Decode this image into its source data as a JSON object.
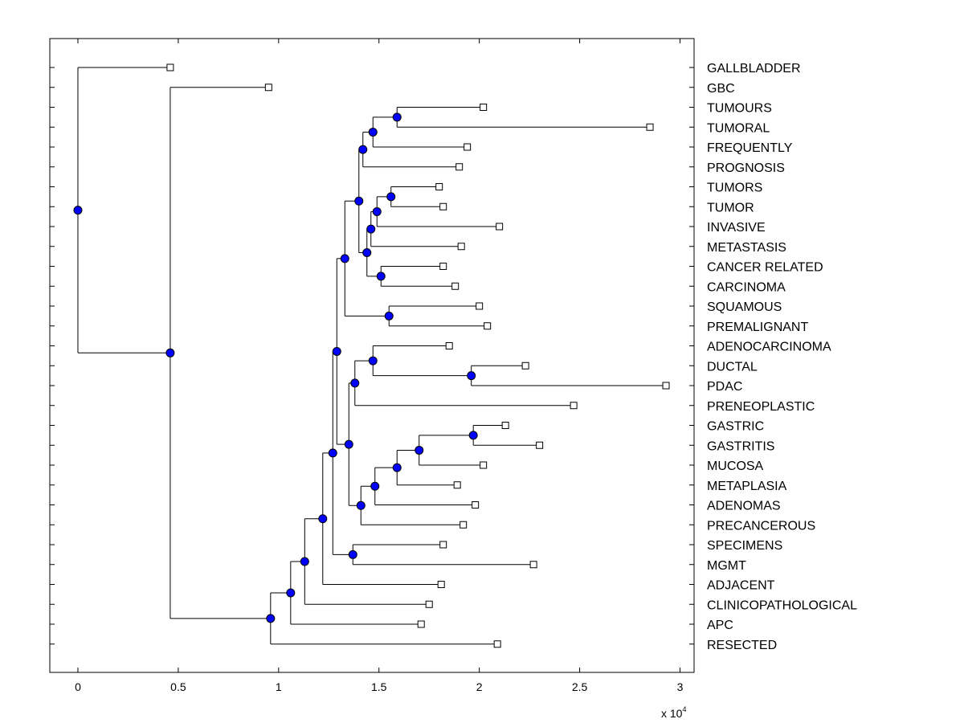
{
  "chart_data": {
    "type": "dendrogram",
    "title": "",
    "xlabel": "",
    "ylabel": "",
    "xlim": [
      -0.14,
      3.07
    ],
    "xticks": [
      0,
      0.5,
      1,
      1.5,
      2,
      2.5,
      3
    ],
    "xtick_labels": [
      "0",
      "0.5",
      "1",
      "1.5",
      "2",
      "2.5",
      "3"
    ],
    "x_multiplier_base": "x 10",
    "x_multiplier_exponent": "4",
    "grid": false,
    "colors": {
      "internal_node": "#0000ff",
      "line": "#000000",
      "leaf_marker": "#ffffff"
    },
    "leaves": [
      {
        "id": "GALLBLADDER",
        "label": "GALLBLADDER",
        "x": 0.46
      },
      {
        "id": "GBC",
        "label": "GBC",
        "x": 0.95
      },
      {
        "id": "TUMOURS",
        "label": "TUMOURS",
        "x": 2.02
      },
      {
        "id": "TUMORAL",
        "label": "TUMORAL",
        "x": 2.85
      },
      {
        "id": "FREQUENTLY",
        "label": "FREQUENTLY",
        "x": 1.94
      },
      {
        "id": "PROGNOSIS",
        "label": "PROGNOSIS",
        "x": 1.9
      },
      {
        "id": "TUMORS",
        "label": "TUMORS",
        "x": 1.8
      },
      {
        "id": "TUMOR",
        "label": "TUMOR",
        "x": 1.82
      },
      {
        "id": "INVASIVE",
        "label": "INVASIVE",
        "x": 2.1
      },
      {
        "id": "METASTASIS",
        "label": "METASTASIS",
        "x": 1.91
      },
      {
        "id": "CANCER_RELATED",
        "label": "CANCER RELATED",
        "x": 1.82
      },
      {
        "id": "CARCINOMA",
        "label": "CARCINOMA",
        "x": 1.88
      },
      {
        "id": "SQUAMOUS",
        "label": "SQUAMOUS",
        "x": 2.0
      },
      {
        "id": "PREMALIGNANT",
        "label": "PREMALIGNANT",
        "x": 2.04
      },
      {
        "id": "ADENOCARCINOMA",
        "label": "ADENOCARCINOMA",
        "x": 1.85
      },
      {
        "id": "DUCTAL",
        "label": "DUCTAL",
        "x": 2.23
      },
      {
        "id": "PDAC",
        "label": "PDAC",
        "x": 2.93
      },
      {
        "id": "PRENEOPLASTIC",
        "label": "PRENEOPLASTIC",
        "x": 2.47
      },
      {
        "id": "GASTRIC",
        "label": "GASTRIC",
        "x": 2.13
      },
      {
        "id": "GASTRITIS",
        "label": "GASTRITIS",
        "x": 2.3
      },
      {
        "id": "MUCOSA",
        "label": "MUCOSA",
        "x": 2.02
      },
      {
        "id": "METAPLASIA",
        "label": "METAPLASIA",
        "x": 1.89
      },
      {
        "id": "ADENOMAS",
        "label": "ADENOMAS",
        "x": 1.98
      },
      {
        "id": "PRECANCEROUS",
        "label": "PRECANCEROUS",
        "x": 1.92
      },
      {
        "id": "SPECIMENS",
        "label": "SPECIMENS",
        "x": 1.82
      },
      {
        "id": "MGMT",
        "label": "MGMT",
        "x": 2.27
      },
      {
        "id": "ADJACENT",
        "label": "ADJACENT",
        "x": 1.81
      },
      {
        "id": "CLINICOPATHOLOGICAL",
        "label": "CLINICOPATHOLOGICAL",
        "x": 1.75
      },
      {
        "id": "APC",
        "label": "APC",
        "x": 1.71
      },
      {
        "id": "RESECTED",
        "label": "RESECTED",
        "x": 2.09
      }
    ],
    "nodes": [
      {
        "id": "n_tumours_tumoral",
        "x": 1.59,
        "children": [
          "TUMOURS",
          "TUMORAL"
        ]
      },
      {
        "id": "n_freq",
        "x": 1.47,
        "children": [
          "n_tumours_tumoral",
          "FREQUENTLY"
        ]
      },
      {
        "id": "n_prog",
        "x": 1.42,
        "children": [
          "n_freq",
          "PROGNOSIS"
        ]
      },
      {
        "id": "n_tumors_tumor",
        "x": 1.56,
        "children": [
          "TUMORS",
          "TUMOR"
        ]
      },
      {
        "id": "n_invasive",
        "x": 1.49,
        "children": [
          "n_tumors_tumor",
          "INVASIVE"
        ]
      },
      {
        "id": "n_metastasis",
        "x": 1.46,
        "children": [
          "n_invasive",
          "METASTASIS"
        ]
      },
      {
        "id": "n_cancer_carcinoma",
        "x": 1.51,
        "children": [
          "CANCER_RELATED",
          "CARCINOMA"
        ]
      },
      {
        "id": "n_tumor_group",
        "x": 1.44,
        "children": [
          "n_metastasis",
          "n_cancer_carcinoma"
        ]
      },
      {
        "id": "n_tumor_cluster",
        "x": 1.4,
        "children": [
          "n_prog",
          "n_tumor_group"
        ]
      },
      {
        "id": "n_squamous_premal",
        "x": 1.55,
        "children": [
          "SQUAMOUS",
          "PREMALIGNANT"
        ]
      },
      {
        "id": "n_upper",
        "x": 1.33,
        "children": [
          "n_tumor_cluster",
          "n_squamous_premal"
        ]
      },
      {
        "id": "n_ductal_pdac",
        "x": 1.96,
        "children": [
          "DUCTAL",
          "PDAC"
        ]
      },
      {
        "id": "n_adeno",
        "x": 1.47,
        "children": [
          "ADENOCARCINOMA",
          "n_ductal_pdac"
        ]
      },
      {
        "id": "n_preneo",
        "x": 1.38,
        "children": [
          "n_adeno",
          "PRENEOPLASTIC"
        ]
      },
      {
        "id": "n_gastric_gastritis",
        "x": 1.97,
        "children": [
          "GASTRIC",
          "GASTRITIS"
        ]
      },
      {
        "id": "n_mucosa",
        "x": 1.7,
        "children": [
          "n_gastric_gastritis",
          "MUCOSA"
        ]
      },
      {
        "id": "n_metaplasia",
        "x": 1.59,
        "children": [
          "n_mucosa",
          "METAPLASIA"
        ]
      },
      {
        "id": "n_adenomas",
        "x": 1.48,
        "children": [
          "n_metaplasia",
          "ADENOMAS"
        ]
      },
      {
        "id": "n_precancerous",
        "x": 1.41,
        "children": [
          "n_adenomas",
          "PRECANCEROUS"
        ]
      },
      {
        "id": "n_middle",
        "x": 1.35,
        "children": [
          "n_preneo",
          "n_precancerous"
        ]
      },
      {
        "id": "n_main",
        "x": 1.29,
        "children": [
          "n_upper",
          "n_middle"
        ]
      },
      {
        "id": "n_specimens_mgmt",
        "x": 1.37,
        "children": [
          "SPECIMENS",
          "MGMT"
        ]
      },
      {
        "id": "n_big",
        "x": 1.27,
        "children": [
          "n_main",
          "n_specimens_mgmt"
        ]
      },
      {
        "id": "n_adjacent",
        "x": 1.22,
        "children": [
          "n_big",
          "ADJACENT"
        ]
      },
      {
        "id": "n_clinico",
        "x": 1.13,
        "children": [
          "n_adjacent",
          "CLINICOPATHOLOGICAL"
        ]
      },
      {
        "id": "n_apc",
        "x": 1.06,
        "children": [
          "n_clinico",
          "APC"
        ]
      },
      {
        "id": "n_resected",
        "x": 0.96,
        "children": [
          "n_apc",
          "RESECTED"
        ]
      },
      {
        "id": "n_gbc",
        "x": 0.46,
        "children": [
          "GBC",
          "n_resected"
        ]
      },
      {
        "id": "n_root",
        "x": 0.0,
        "children": [
          "GALLBLADDER",
          "n_gbc"
        ]
      }
    ]
  }
}
